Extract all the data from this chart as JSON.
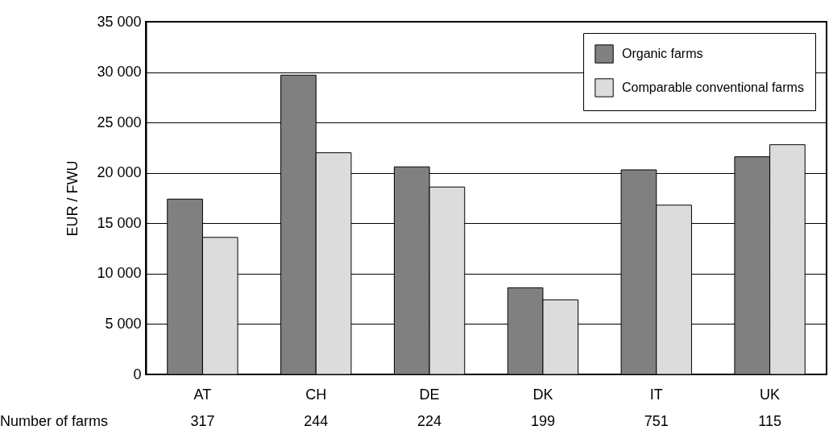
{
  "chart_data": {
    "type": "bar",
    "categories": [
      "AT",
      "CH",
      "DE",
      "DK",
      "IT",
      "UK"
    ],
    "series": [
      {
        "name": "Organic farms",
        "color": "#808080",
        "values": [
          17400,
          29700,
          20600,
          8600,
          20300,
          21600
        ]
      },
      {
        "name": "Comparable conventional farms",
        "color": "#dcdcdc",
        "values": [
          13600,
          22000,
          18600,
          7400,
          16800,
          22800
        ]
      }
    ],
    "ylabel": "EUR / FWU",
    "ylim": [
      0,
      35000
    ],
    "yticks": [
      0,
      {
        "value": 5000,
        "label": "5 000"
      },
      {
        "value": 10000,
        "label": "10 000"
      },
      {
        "value": 15000,
        "label": "15 000"
      },
      {
        "value": 20000,
        "label": "20 000"
      },
      {
        "value": 25000,
        "label": "25 000"
      },
      {
        "value": 30000,
        "label": "30 000"
      },
      {
        "value": 35000,
        "label": "35 000"
      }
    ],
    "grid": "y",
    "legend": "top right",
    "annotations": [
      "Number of farms",
      "317",
      "244",
      "224",
      "199",
      "751",
      "115"
    ]
  }
}
